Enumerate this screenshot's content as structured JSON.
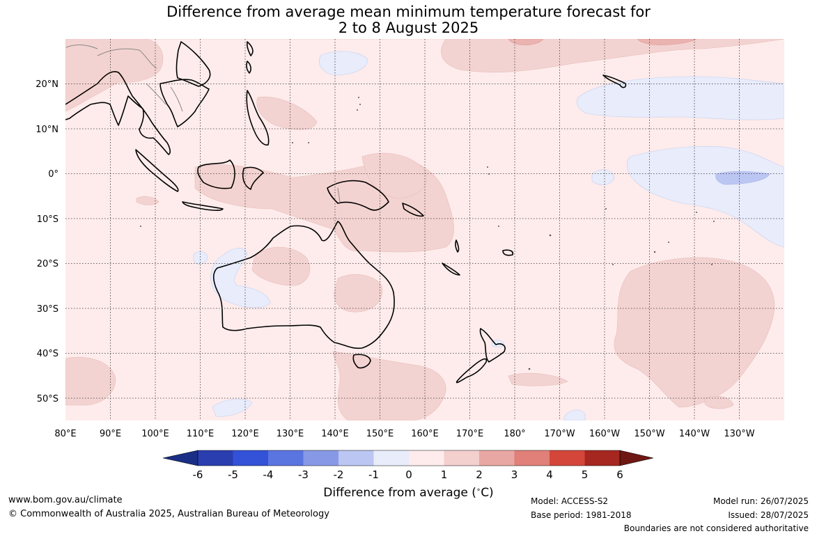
{
  "title": {
    "line1": "Difference from average mean minimum temperature forecast for",
    "line2": "2 to 8 August 2025"
  },
  "map": {
    "lon_ticks": [
      "80°E",
      "90°E",
      "100°E",
      "110°E",
      "120°E",
      "130°E",
      "140°E",
      "150°E",
      "160°E",
      "170°E",
      "180°",
      "170°W",
      "160°W",
      "150°W",
      "140°W",
      "130°W"
    ],
    "lat_ticks": [
      "20°N",
      "10°N",
      "0°",
      "10°S",
      "20°S",
      "30°S",
      "40°S",
      "50°S"
    ],
    "extent": {
      "lon_min": 80,
      "lon_max": 240,
      "lat_min": -55,
      "lat_max": 29
    },
    "grid": "dotted"
  },
  "colorbar": {
    "labels": [
      "-6",
      "-5",
      "-4",
      "-3",
      "-2",
      "-1",
      "0",
      "1",
      "2",
      "3",
      "4",
      "5",
      "6"
    ],
    "colors": [
      "#1b2e85",
      "#2a3eb0",
      "#3352d8",
      "#5a74e0",
      "#8799e6",
      "#bcc6f2",
      "#e8ecfb",
      "#fdeceb",
      "#f3cfcd",
      "#e9a7a3",
      "#e08078",
      "#d4463a",
      "#a5271f",
      "#6e1713"
    ],
    "title": "Difference from average (",
    "degree": "∘",
    "unit": "C)"
  },
  "footer": {
    "url": "www.bom.gov.au/climate",
    "copyright": "© Commonwealth of Australia 2025, Australian Bureau of Meteorology",
    "model": "Model: ACCESS-S2",
    "base_period": "Base period: 1981-2018",
    "model_run": "Model run: 26/07/2025",
    "issued": "Issued: 28/07/2025",
    "disclaimer": "Boundaries are not considered authoritative"
  }
}
